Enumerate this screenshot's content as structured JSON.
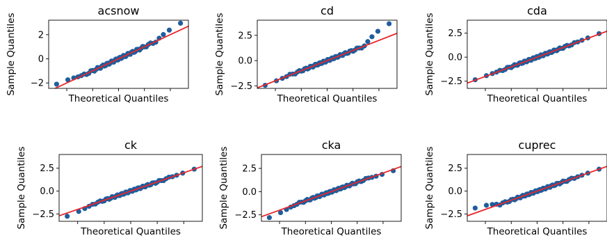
{
  "figure": {
    "xlabel": "Theoretical Quantiles",
    "ylabel": "Sample Quantiles"
  },
  "colors": {
    "points": "#1f5d9c",
    "line": "#e8262a",
    "axes": "#000000"
  },
  "chart_data": [
    {
      "type": "scatter",
      "title": "acsnow",
      "xlabel": "Theoretical Quantiles",
      "ylabel": "Sample Quantiles",
      "xlim": [
        -2.7,
        2.7
      ],
      "ylim": [
        -2.45,
        3.2
      ],
      "yticks": [
        -2,
        0,
        2
      ],
      "yticklabels": [
        "−2",
        "0",
        "2"
      ],
      "reference_line": {
        "slope": 1.0,
        "intercept": 0.0
      },
      "grid": false,
      "tail_low": -2.1,
      "tail_high": 2.95
    },
    {
      "type": "scatter",
      "title": "cd",
      "xlabel": "Theoretical Quantiles",
      "ylabel": "Sample Quantiles",
      "xlim": [
        -2.7,
        2.7
      ],
      "ylim": [
        -2.75,
        4.0
      ],
      "yticks": [
        -2.5,
        0.0,
        2.5
      ],
      "yticklabels": [
        "−2.5",
        "0.0",
        "2.5"
      ],
      "reference_line": {
        "slope": 1.0,
        "intercept": 0.0
      },
      "grid": false,
      "tail_low": -2.45,
      "tail_high": 3.65
    },
    {
      "type": "scatter",
      "title": "cda",
      "xlabel": "Theoretical Quantiles",
      "ylabel": "Sample Quantiles",
      "xlim": [
        -2.7,
        2.7
      ],
      "ylim": [
        -3.25,
        3.85
      ],
      "yticks": [
        -2.5,
        0.0,
        2.5
      ],
      "yticklabels": [
        "−2.5",
        "0.0",
        "2.5"
      ],
      "reference_line": {
        "slope": 1.0,
        "intercept": 0.0
      },
      "grid": false,
      "tail_low": -2.35,
      "tail_high": 2.45
    },
    {
      "type": "scatter",
      "title": "ck",
      "xlabel": "Theoretical Quantiles",
      "ylabel": "Sample Quantiles",
      "xlim": [
        -2.7,
        2.7
      ],
      "ylim": [
        -3.3,
        4.0
      ],
      "yticks": [
        -2.5,
        0.0,
        2.5
      ],
      "yticklabels": [
        "−2.5",
        "0.0",
        "2.5"
      ],
      "reference_line": {
        "slope": 1.0,
        "intercept": 0.0
      },
      "grid": false,
      "tail_low": -2.75,
      "tail_high": 2.4
    },
    {
      "type": "scatter",
      "title": "cka",
      "xlabel": "Theoretical Quantiles",
      "ylabel": "Sample Quantiles",
      "xlim": [
        -2.7,
        2.7
      ],
      "ylim": [
        -3.2,
        4.0
      ],
      "yticks": [
        -2.5,
        0.0,
        2.5
      ],
      "yticklabels": [
        "−2.5",
        "0.0",
        "2.5"
      ],
      "reference_line": {
        "slope": 1.0,
        "intercept": 0.0
      },
      "grid": false,
      "tail_low": -2.8,
      "tail_high": 2.25
    },
    {
      "type": "scatter",
      "title": "cuprec",
      "xlabel": "Theoretical Quantiles",
      "ylabel": "Sample Quantiles",
      "xlim": [
        -2.7,
        2.7
      ],
      "ylim": [
        -3.3,
        4.0
      ],
      "yticks": [
        -2.5,
        0.0,
        2.5
      ],
      "yticklabels": [
        "−2.5",
        "0.0",
        "2.5"
      ],
      "reference_line": {
        "slope": 1.0,
        "intercept": 0.0
      },
      "grid": false,
      "tail_low": -1.85,
      "tail_high": 2.4
    }
  ]
}
